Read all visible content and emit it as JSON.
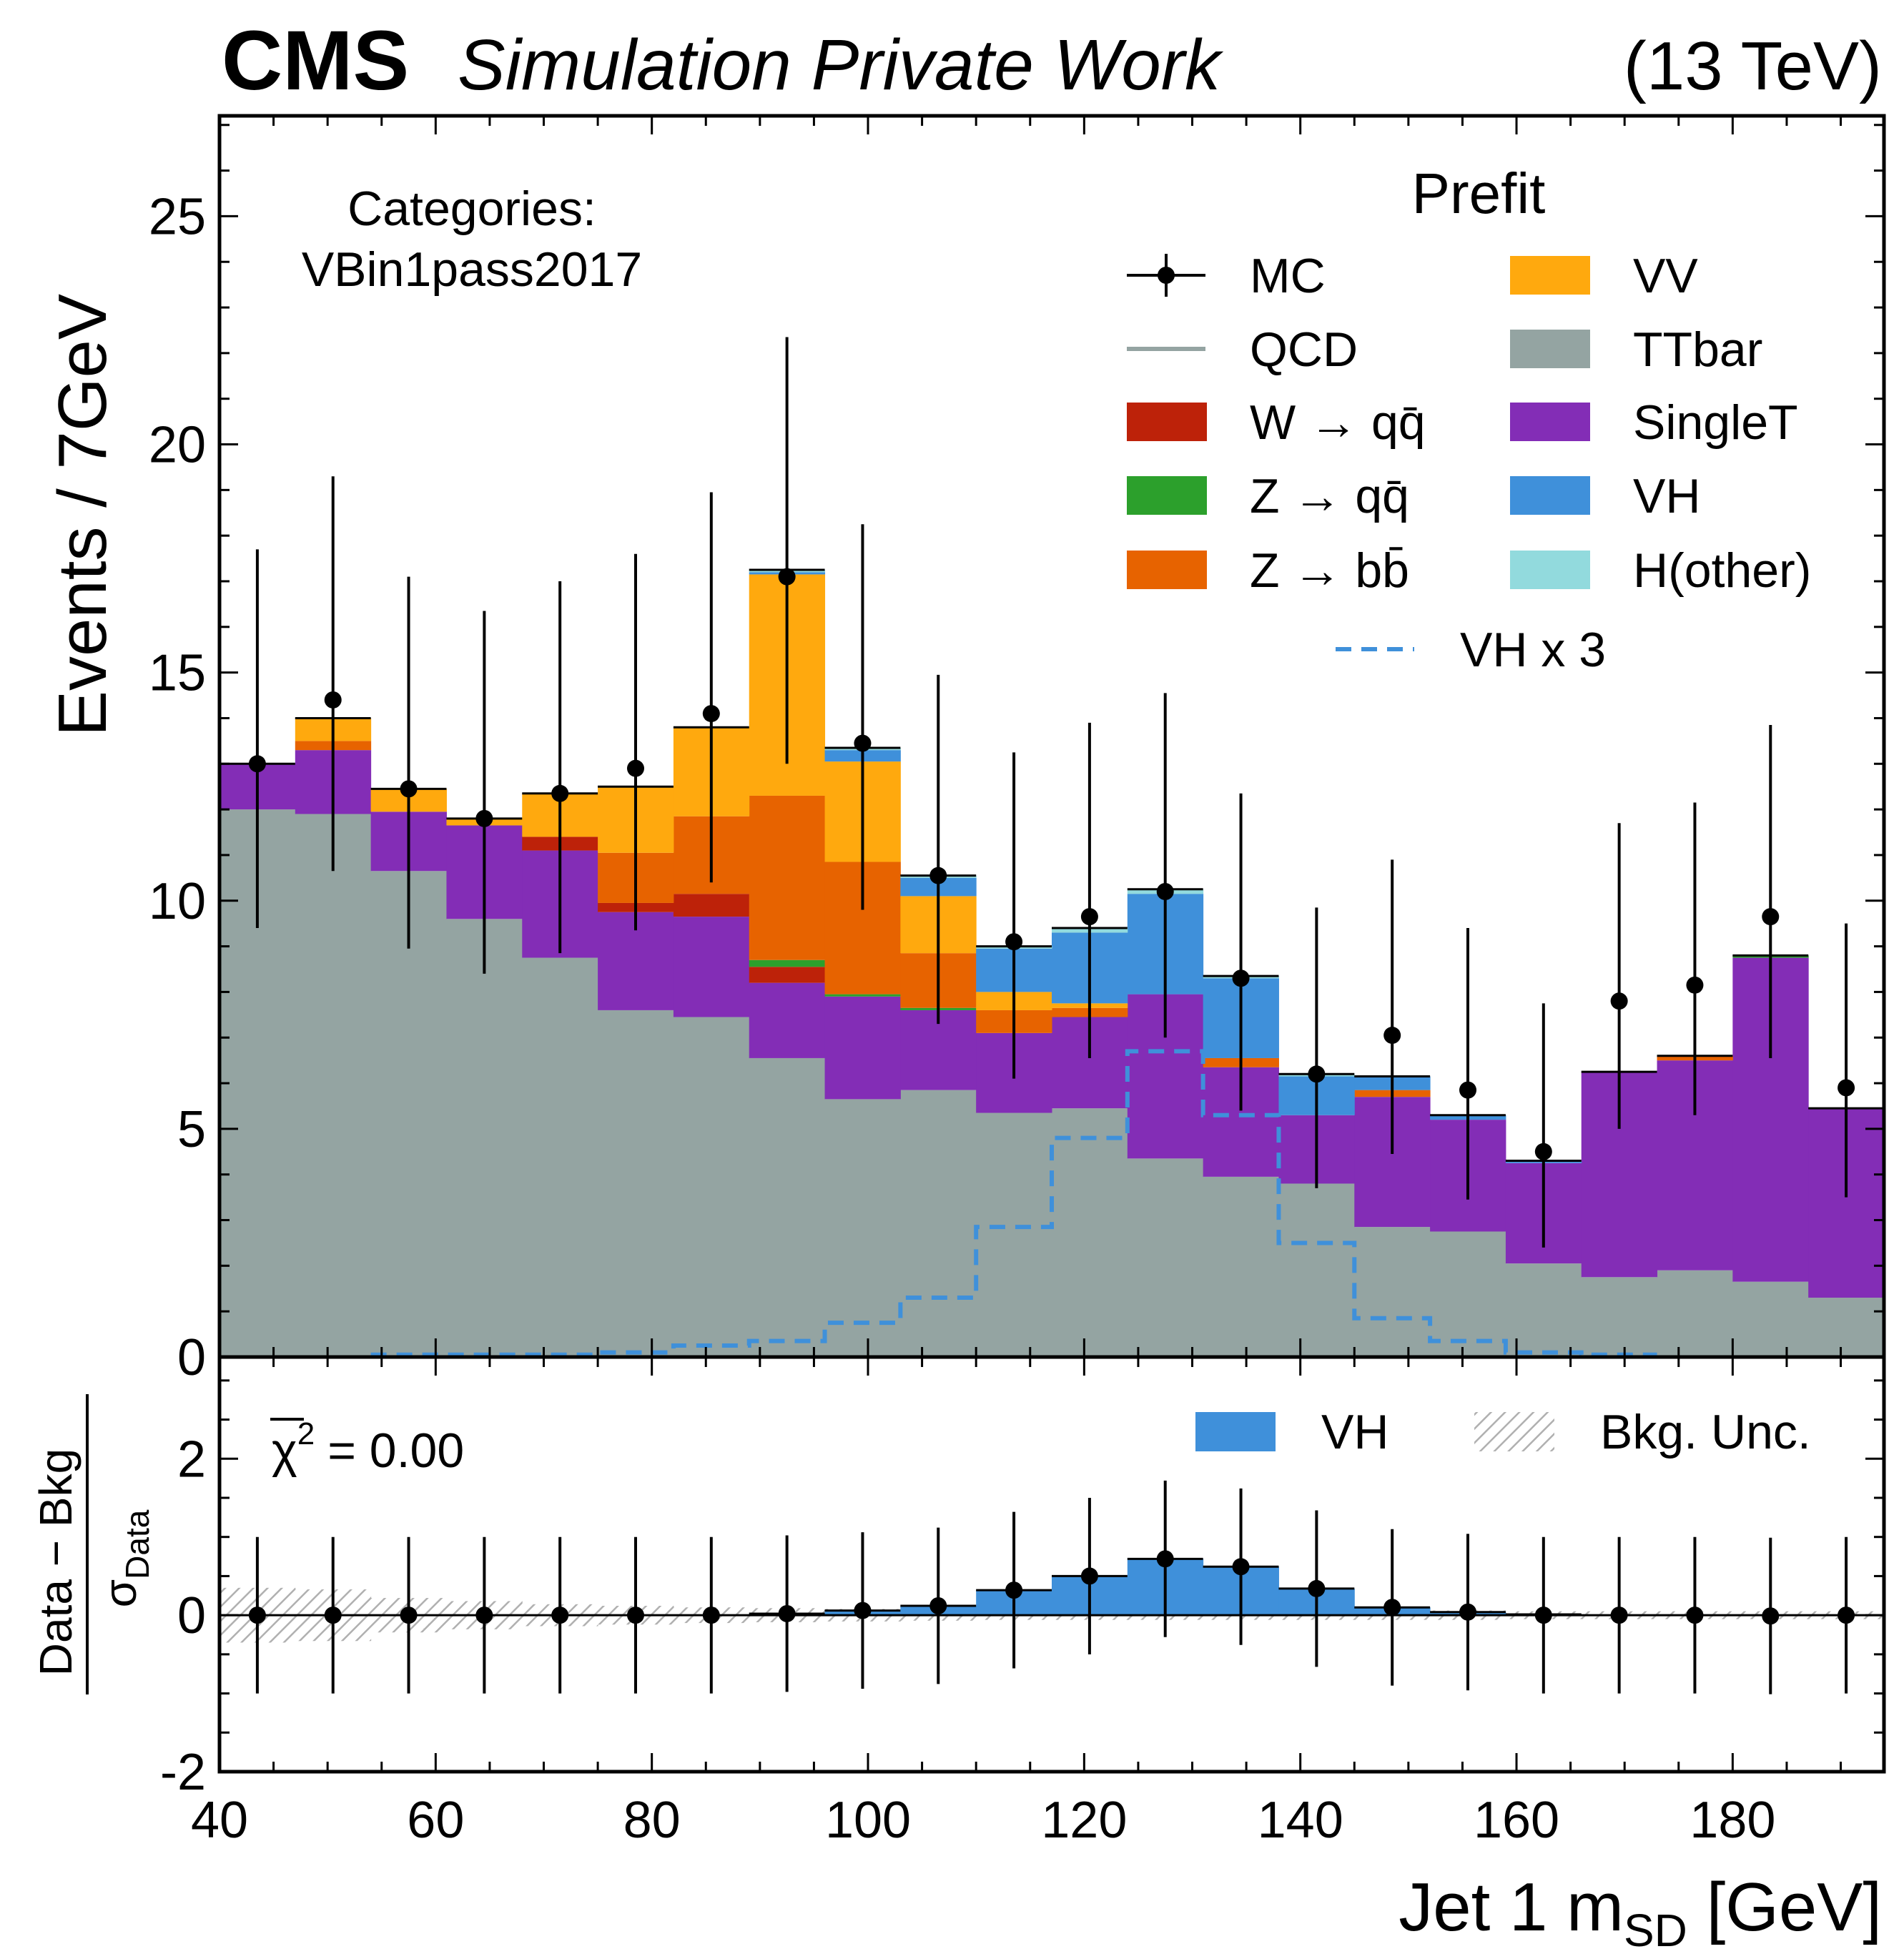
{
  "header": {
    "experiment": "CMS",
    "label": "Simulation Private Work",
    "energy": "(13 TeV)"
  },
  "category": {
    "line1": "Categories:",
    "line2": "VBin1pass2017"
  },
  "legend": {
    "title": "Prefit",
    "entries": [
      {
        "key": "mc",
        "label": "MC",
        "kind": "errorbar",
        "color": "#000000"
      },
      {
        "key": "qcd",
        "label": "QCD",
        "kind": "line",
        "color": "#94a4a2"
      },
      {
        "key": "wqq",
        "label": "W → qq̄",
        "kind": "box",
        "color": "#bd2209"
      },
      {
        "key": "zqq",
        "label": "Z → qq̄",
        "kind": "box",
        "color": "#2ca02c"
      },
      {
        "key": "zbb",
        "label": "Z → bb̄",
        "kind": "box",
        "color": "#e76300"
      },
      {
        "key": "vv",
        "label": "VV",
        "kind": "box",
        "color": "#ffa90e"
      },
      {
        "key": "ttbar",
        "label": "TTbar",
        "kind": "box",
        "color": "#94a4a2"
      },
      {
        "key": "singlet",
        "label": "SingleT",
        "kind": "box",
        "color": "#832db6"
      },
      {
        "key": "vh",
        "label": "VH",
        "kind": "box",
        "color": "#3f90da"
      },
      {
        "key": "hother",
        "label": "H(other)",
        "kind": "box",
        "color": "#92dadd"
      },
      {
        "key": "vhx3",
        "label": "VH x 3",
        "kind": "dashed",
        "color": "#3f90da"
      }
    ]
  },
  "ratio_legend": {
    "vh": "VH",
    "unc": "Bkg. Unc.",
    "chi2_symbol": "χ",
    "chi2_sup": "2",
    "chi2_value": "= 0.00"
  },
  "axes": {
    "ylabel_main": "Events / 7GeV",
    "ylabel_ratio_num": "Data − Bkg",
    "ylabel_ratio_sigma": "σ",
    "ylabel_ratio_sub": "Data",
    "xlabel_prefix": "Jet 1 m",
    "xlabel_sub": "SD",
    "xlabel_suffix": " [GeV]"
  },
  "chart_data": {
    "type": "bar",
    "stacked": true,
    "x_edges": [
      40,
      47,
      54,
      61,
      68,
      75,
      82,
      89,
      96,
      103,
      110,
      117,
      124,
      131,
      138,
      145,
      152,
      159,
      166,
      173,
      180,
      187,
      194
    ],
    "xlim": [
      40,
      194
    ],
    "xticks": [
      40,
      60,
      80,
      100,
      120,
      140,
      160,
      180
    ],
    "ylim_main": [
      0,
      27.2
    ],
    "yticks_main": [
      0,
      5,
      10,
      15,
      20,
      25
    ],
    "ylim_ratio": [
      -2,
      3.3
    ],
    "yticks_ratio": [
      -2,
      0,
      2
    ],
    "series": [
      {
        "key": "ttbar",
        "name": "TTbar",
        "values": [
          12.0,
          11.9,
          10.65,
          9.6,
          8.75,
          7.6,
          7.45,
          6.55,
          5.65,
          5.85,
          5.35,
          5.45,
          4.35,
          3.95,
          3.8,
          2.85,
          2.75,
          2.05,
          1.75,
          1.9,
          1.65,
          1.3
        ]
      },
      {
        "key": "singlet",
        "name": "SingleT",
        "values": [
          1.0,
          1.4,
          1.3,
          2.05,
          2.35,
          2.15,
          2.2,
          1.65,
          2.25,
          1.75,
          1.75,
          2.0,
          3.6,
          2.4,
          1.5,
          2.85,
          2.45,
          2.2,
          4.5,
          4.6,
          7.1,
          4.15
        ]
      },
      {
        "key": "qcd",
        "name": "QCD",
        "values": [
          0,
          0,
          0,
          0,
          0,
          0,
          0,
          0,
          0,
          0,
          0,
          0,
          0,
          0,
          0,
          0,
          0,
          0,
          0,
          0,
          0,
          0
        ]
      },
      {
        "key": "wqq",
        "name": "W → qq̄",
        "values": [
          0,
          0,
          0,
          0,
          0.3,
          0.2,
          0.5,
          0.35,
          0,
          0,
          0,
          0,
          0,
          0,
          0,
          0,
          0,
          0,
          0,
          0,
          0,
          0
        ]
      },
      {
        "key": "zqq",
        "name": "Z → qq̄",
        "values": [
          0,
          0,
          0,
          0,
          0,
          0,
          0,
          0.15,
          0.05,
          0.05,
          0,
          0,
          0,
          0,
          0,
          0,
          0,
          0,
          0,
          0,
          0.05,
          0
        ]
      },
      {
        "key": "zbb",
        "name": "Z → bb̄",
        "values": [
          0,
          0.2,
          0,
          0,
          0,
          1.1,
          1.7,
          3.6,
          2.9,
          1.2,
          0.5,
          0.2,
          0,
          0.2,
          0,
          0.15,
          0,
          0,
          0,
          0.1,
          0,
          0
        ]
      },
      {
        "key": "vv",
        "name": "VV",
        "values": [
          0,
          0.5,
          0.5,
          0.15,
          0.95,
          1.45,
          1.95,
          4.85,
          2.2,
          1.25,
          0.4,
          0.1,
          0,
          0,
          0,
          0,
          0,
          0,
          0,
          0,
          0,
          0
        ]
      },
      {
        "key": "vh",
        "name": "VH",
        "values": [
          0,
          0,
          0,
          0,
          0,
          0,
          0,
          0.05,
          0.25,
          0.4,
          0.95,
          1.55,
          2.2,
          1.75,
          0.85,
          0.3,
          0.1,
          0.05,
          0,
          0,
          0,
          0
        ]
      },
      {
        "key": "hother",
        "name": "H(other)",
        "values": [
          0,
          0,
          0,
          0,
          0,
          0,
          0,
          0.05,
          0.05,
          0.05,
          0.05,
          0.1,
          0.1,
          0.05,
          0.05,
          0,
          0,
          0,
          0,
          0,
          0,
          0
        ]
      }
    ],
    "mc_points": {
      "x": [
        43.5,
        50.5,
        57.5,
        64.5,
        71.5,
        78.5,
        85.5,
        92.5,
        99.5,
        106.5,
        113.5,
        120.5,
        127.5,
        134.5,
        141.5,
        148.5,
        155.5,
        162.5,
        169.5,
        176.5,
        183.5,
        190.5
      ],
      "y": [
        13.0,
        14.4,
        12.45,
        11.8,
        12.35,
        12.9,
        14.1,
        17.1,
        13.45,
        10.55,
        9.1,
        9.65,
        10.2,
        8.3,
        6.2,
        7.05,
        5.85,
        4.5,
        7.8,
        8.15,
        9.65,
        5.9
      ],
      "yerr_low": [
        3.6,
        3.75,
        3.5,
        3.4,
        3.5,
        3.55,
        3.7,
        4.1,
        3.65,
        3.25,
        3.0,
        3.1,
        3.2,
        2.9,
        2.5,
        2.6,
        2.4,
        2.1,
        2.8,
        2.85,
        3.1,
        2.4
      ],
      "yerr_high": [
        4.7,
        4.9,
        4.65,
        4.55,
        4.65,
        4.7,
        4.85,
        5.25,
        4.8,
        4.4,
        4.15,
        4.25,
        4.35,
        4.05,
        3.65,
        3.85,
        3.55,
        3.25,
        3.9,
        4.0,
        4.2,
        3.6
      ]
    },
    "vh_x3": [
      0,
      0,
      0.05,
      0.05,
      0.05,
      0.1,
      0.25,
      0.35,
      0.75,
      1.3,
      2.85,
      4.8,
      6.7,
      5.3,
      2.5,
      0.85,
      0.35,
      0.1,
      0.05,
      0,
      0,
      0
    ],
    "ratio": {
      "points": [
        0,
        0,
        0,
        0,
        0,
        0,
        0,
        0.02,
        0.06,
        0.12,
        0.32,
        0.5,
        0.72,
        0.62,
        0.34,
        0.1,
        0.04,
        0,
        0,
        0,
        -0.01,
        0
      ],
      "err": [
        1,
        1,
        1,
        1,
        1,
        1,
        1,
        1,
        1,
        1,
        1,
        1,
        1,
        1,
        1,
        1,
        1,
        1,
        1,
        1,
        1,
        1
      ],
      "vh_band": [
        0,
        0,
        0,
        0,
        0,
        0,
        0,
        0.02,
        0.06,
        0.12,
        0.32,
        0.5,
        0.72,
        0.62,
        0.34,
        0.1,
        0.04,
        0.01,
        0,
        0,
        0,
        0
      ],
      "unc_band": [
        0.35,
        0.33,
        0.22,
        0.18,
        0.14,
        0.12,
        0.1,
        0.09,
        0.08,
        0.07,
        0.06,
        0.06,
        0.06,
        0.06,
        0.06,
        0.06,
        0.06,
        0.05,
        0.05,
        0.05,
        0.05,
        0.05
      ]
    }
  }
}
